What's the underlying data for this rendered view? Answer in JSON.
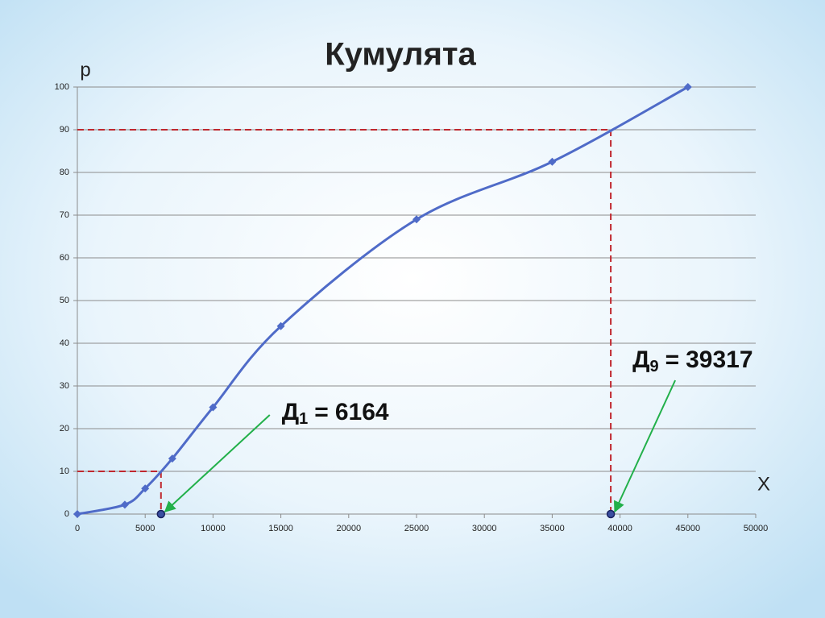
{
  "chart_data": {
    "type": "line",
    "title": "Кумулята",
    "y_label": "p",
    "x_label": "X",
    "x": [
      0,
      3500,
      5000,
      7000,
      10000,
      15000,
      25000,
      35000,
      45000
    ],
    "series": [
      {
        "color": "#4f6bc8",
        "values": [
          0,
          2.2,
          6,
          13,
          25,
          44,
          69,
          82.5,
          100
        ]
      }
    ],
    "xlim": [
      0,
      50000
    ],
    "ylim": [
      0,
      100
    ],
    "xticks": [
      0,
      5000,
      10000,
      15000,
      20000,
      25000,
      30000,
      35000,
      40000,
      45000,
      50000
    ],
    "yticks": [
      0,
      10,
      20,
      30,
      40,
      50,
      60,
      70,
      80,
      90,
      100
    ],
    "grid": true,
    "annotations": [
      {
        "symbol": "Д",
        "index": "1",
        "relation": "=",
        "value": 6164,
        "level": 10
      },
      {
        "symbol": "Д",
        "index": "9",
        "relation": "=",
        "value": 39317,
        "level": 90
      }
    ]
  }
}
